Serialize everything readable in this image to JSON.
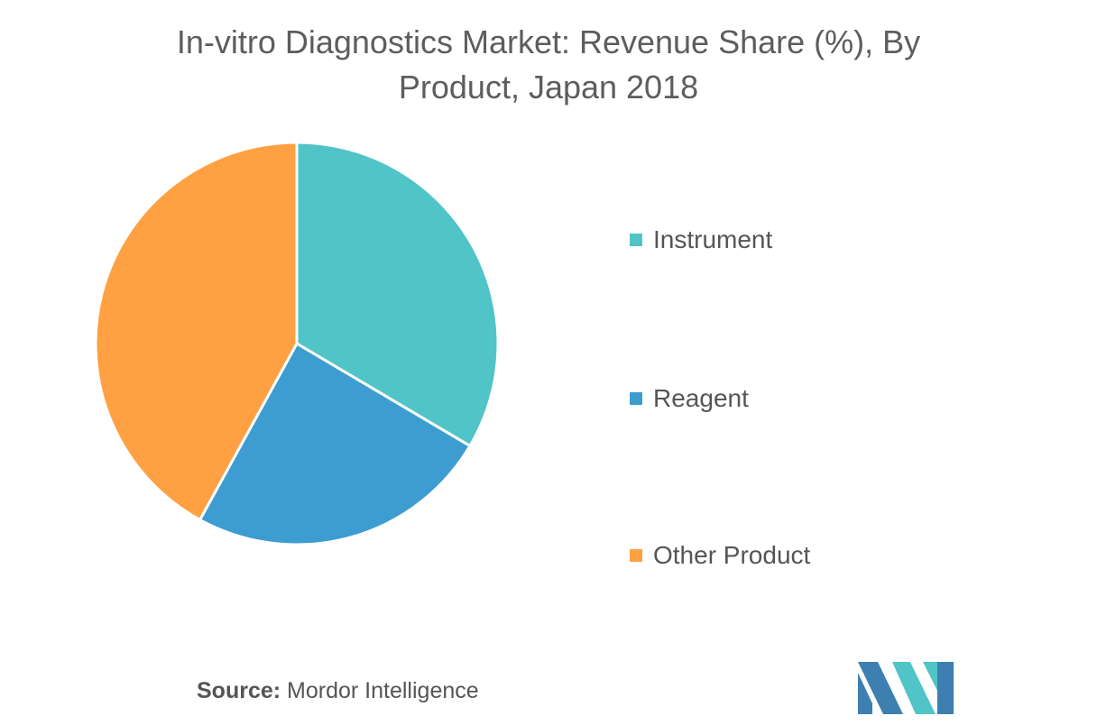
{
  "title_lines": [
    "In-vitro Diagnostics Market: Revenue Share (%), By",
    "Product, Japan 2018"
  ],
  "source": {
    "label": "Source:",
    "text": "Mordor Intelligence"
  },
  "chart_data": {
    "type": "pie",
    "title": "In-vitro Diagnostics Market: Revenue Share (%), By Product, Japan 2018",
    "categories": [
      "Instrument",
      "Reagent",
      "Other Product"
    ],
    "values": [
      33.5,
      24.5,
      42.0
    ],
    "colors": [
      "#50C4C7",
      "#3D9DD0",
      "#FFA043"
    ],
    "legend_position": "right"
  },
  "logo": {
    "icon": "mordor-intelligence-logo-icon",
    "colors": [
      "#3D7FB0",
      "#50C4C7"
    ]
  }
}
